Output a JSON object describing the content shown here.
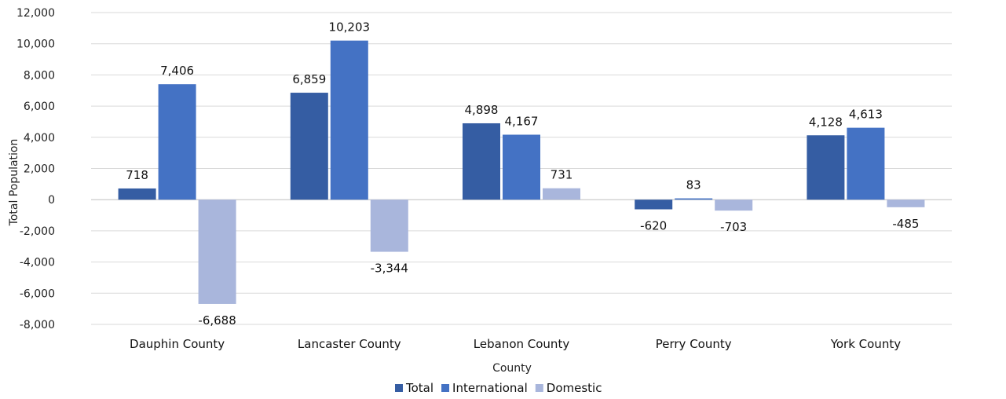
{
  "chart_data": {
    "type": "bar",
    "title": "",
    "xlabel": "County",
    "ylabel": "Total Population",
    "ylim": [
      -8000,
      12000
    ],
    "ytick_step": 2000,
    "ytick_labels": [
      "-8,000",
      "-6,000",
      "-4,000",
      "-2,000",
      "0",
      "2,000",
      "4,000",
      "6,000",
      "8,000",
      "10,000",
      "12,000"
    ],
    "grid": true,
    "legend_position": "bottom",
    "categories": [
      "Dauphin County",
      "Lancaster County",
      "Lebanon County",
      "Perry County",
      "York County"
    ],
    "series": [
      {
        "name": "Total",
        "color": "#355da3",
        "values": [
          718,
          6859,
          4898,
          -620,
          4128
        ],
        "labels": [
          "718",
          "6,859",
          "4,898",
          "-620",
          "4,128"
        ]
      },
      {
        "name": "International",
        "color": "#4472c4",
        "values": [
          7406,
          10203,
          4167,
          83,
          4613
        ],
        "labels": [
          "7,406",
          "10,203",
          "4,167",
          "83",
          "4,613"
        ]
      },
      {
        "name": "Domestic",
        "color": "#a9b6dc",
        "values": [
          -6688,
          -3344,
          731,
          -703,
          -485
        ],
        "labels": [
          "-6,688",
          "-3,344",
          "731",
          "-703",
          "-485"
        ]
      }
    ]
  }
}
